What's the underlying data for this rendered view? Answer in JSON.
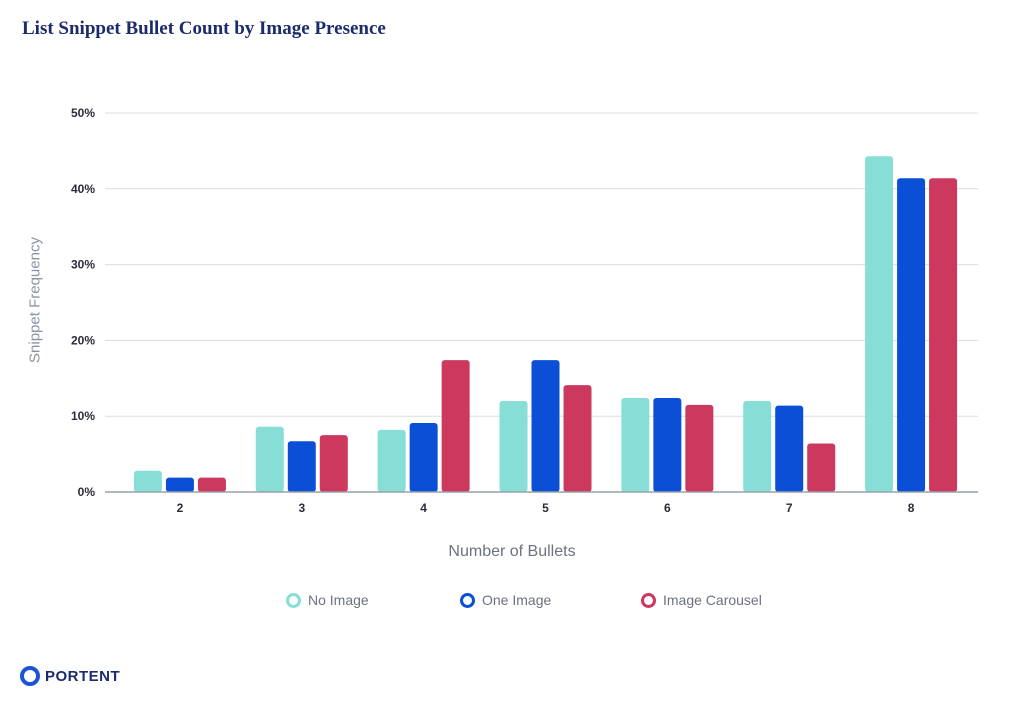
{
  "title": "List Snippet Bullet Count by Image Presence",
  "logo_text": "PORTENT",
  "chart_data": {
    "type": "bar",
    "xlabel": "Number of Bullets",
    "ylabel": "Snippet Frequency",
    "ylim": [
      0,
      50
    ],
    "yticks": [
      "0%",
      "10%",
      "20%",
      "30%",
      "40%",
      "50%"
    ],
    "ytick_values": [
      0,
      10,
      20,
      30,
      40,
      50
    ],
    "grid": true,
    "legend_position": "bottom",
    "categories": [
      "2",
      "3",
      "4",
      "5",
      "6",
      "7",
      "8"
    ],
    "series": [
      {
        "name": "No Image",
        "color": "#86ded6",
        "values": [
          2.8,
          8.6,
          8.2,
          12.0,
          12.4,
          12.0,
          44.3
        ]
      },
      {
        "name": "One Image",
        "color": "#0a4fd6",
        "values": [
          1.9,
          6.7,
          9.1,
          17.4,
          12.4,
          11.4,
          41.4
        ]
      },
      {
        "name": "Image Carousel",
        "color": "#cc385e",
        "values": [
          1.9,
          7.5,
          17.4,
          14.1,
          11.5,
          6.4,
          41.4
        ]
      }
    ]
  }
}
